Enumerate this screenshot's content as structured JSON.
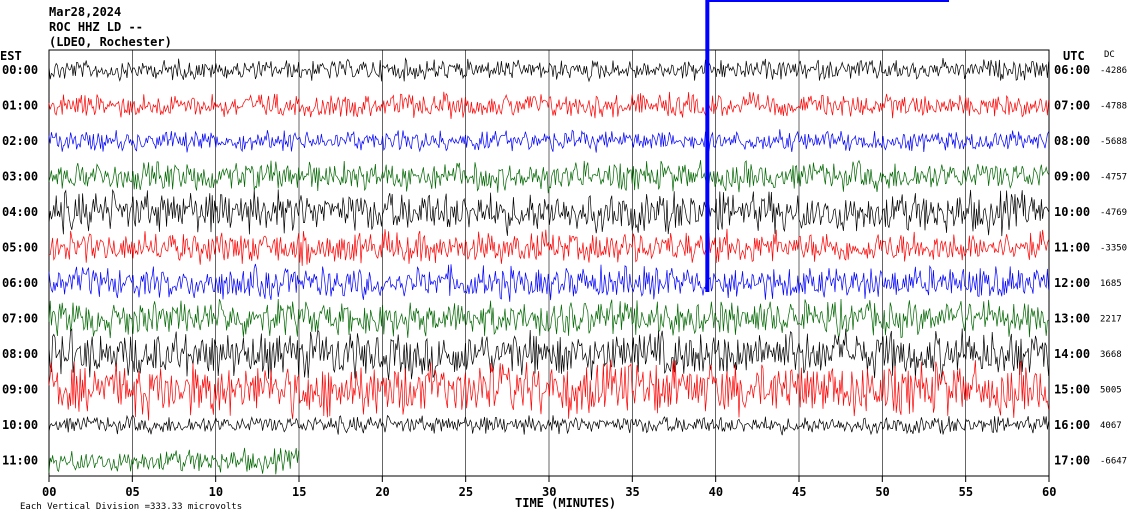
{
  "header": {
    "date": "Mar28,2024",
    "station": "ROC HHZ LD --",
    "network": "(LDEO, Rochester)"
  },
  "left_label": "EST",
  "right_label": "UTC",
  "dc_label": "DC",
  "xlabel": "TIME (MINUTES)",
  "scale_note": "Each Vertical Division =",
  "scale_value": "333.33 microvolts",
  "chart_data": {
    "type": "line",
    "title": "",
    "xlabel": "TIME (MINUTES)",
    "xlim": [
      0,
      60
    ],
    "x_ticks": [
      "00",
      "05",
      "10",
      "15",
      "20",
      "25",
      "30",
      "35",
      "40",
      "45",
      "50",
      "55",
      "60"
    ],
    "trace_colors": [
      "#000000",
      "#ff0000",
      "#0000ff",
      "#006600"
    ],
    "rows": [
      {
        "est": "00:00",
        "utc": "06:00",
        "dc": "-4286",
        "color": "#000000",
        "amp": 0.35
      },
      {
        "est": "01:00",
        "utc": "07:00",
        "dc": "-4788",
        "color": "#ff0000",
        "amp": 0.4
      },
      {
        "est": "02:00",
        "utc": "08:00",
        "dc": "-5688",
        "color": "#0000ff",
        "amp": 0.35
      },
      {
        "est": "03:00",
        "utc": "09:00",
        "dc": "-4757",
        "color": "#006600",
        "amp": 0.5
      },
      {
        "est": "04:00",
        "utc": "10:00",
        "dc": "-4769",
        "color": "#000000",
        "amp": 0.7
      },
      {
        "est": "05:00",
        "utc": "11:00",
        "dc": "-3350",
        "color": "#ff0000",
        "amp": 0.55
      },
      {
        "est": "06:00",
        "utc": "12:00",
        "dc": "1685",
        "color": "#0000ff",
        "amp": 0.55
      },
      {
        "est": "07:00",
        "utc": "13:00",
        "dc": "2217",
        "color": "#006600",
        "amp": 0.6
      },
      {
        "est": "08:00",
        "utc": "14:00",
        "dc": "3668",
        "color": "#000000",
        "amp": 0.8
      },
      {
        "est": "09:00",
        "utc": "15:00",
        "dc": "5005",
        "color": "#ff0000",
        "amp": 0.9
      },
      {
        "est": "10:00",
        "utc": "16:00",
        "dc": "4067",
        "color": "#000000",
        "amp": 0.3
      },
      {
        "est": "11:00",
        "utc": "17:00",
        "dc": "-6647",
        "color": "#006600",
        "amp": 0.4
      }
    ],
    "last_trace_end_minute": 15,
    "events": [
      {
        "minute": 39.5,
        "color": "#0000ff",
        "note": "saturated spike"
      }
    ]
  }
}
